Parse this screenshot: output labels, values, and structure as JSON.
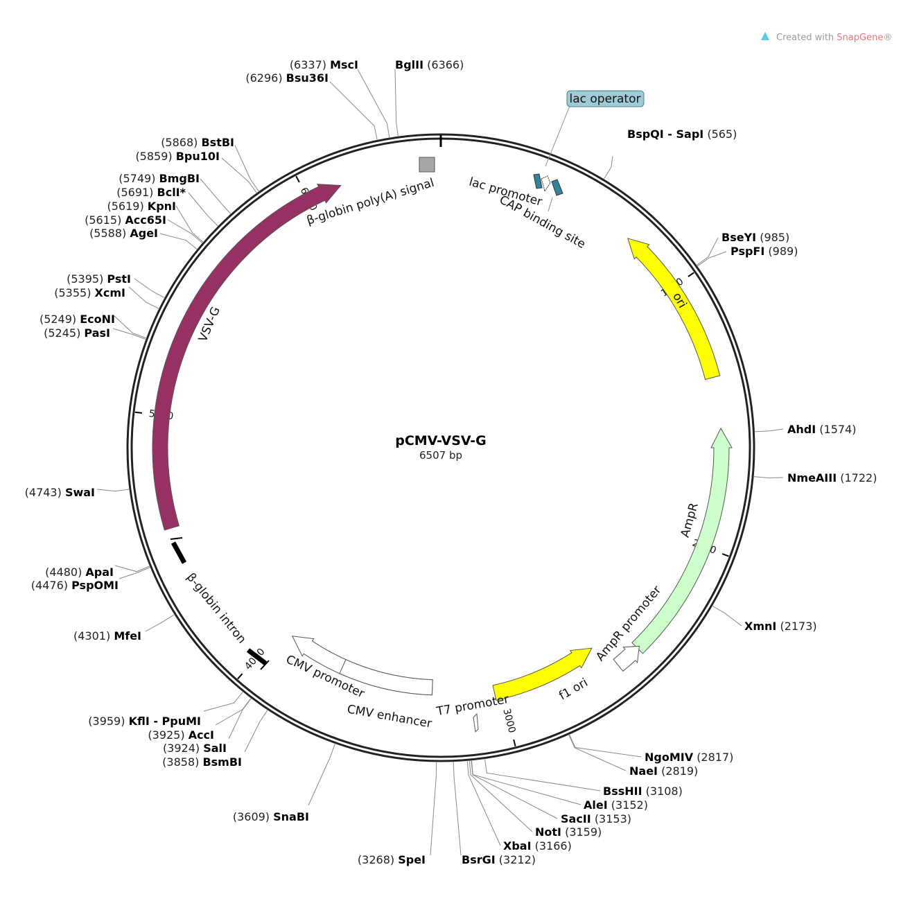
{
  "credit": {
    "prefix": "Created with ",
    "brand": "SnapGene",
    "suffix": "®"
  },
  "plasmid": {
    "name": "pCMV-VSV-G",
    "size": "6507 bp",
    "length": 6507
  },
  "ticks": [
    {
      "pos": 1000,
      "label": "1000"
    },
    {
      "pos": 2000,
      "label": "2000"
    },
    {
      "pos": 3000,
      "label": "3000"
    },
    {
      "pos": 4000,
      "label": "4000"
    },
    {
      "pos": 5000,
      "label": "5000"
    },
    {
      "pos": 6000,
      "label": "6000"
    }
  ],
  "sites": [
    {
      "name": "BspQI - SapI",
      "pos": "(565)"
    },
    {
      "name": "BseYI",
      "pos": "(985)"
    },
    {
      "name": "PspFI",
      "pos": "(989)"
    },
    {
      "name": "AhdI",
      "pos": "(1574)"
    },
    {
      "name": "NmeAIII",
      "pos": "(1722)"
    },
    {
      "name": "XmnI",
      "pos": "(2173)"
    },
    {
      "name": "NgoMIV",
      "pos": "(2817)"
    },
    {
      "name": "NaeI",
      "pos": "(2819)"
    },
    {
      "name": "BssHII",
      "pos": "(3108)"
    },
    {
      "name": "AleI",
      "pos": "(3152)"
    },
    {
      "name": "SacII",
      "pos": "(3153)"
    },
    {
      "name": "NotI",
      "pos": "(3159)"
    },
    {
      "name": "XbaI",
      "pos": "(3166)"
    },
    {
      "name": "BsrGI",
      "pos": "(3212)"
    },
    {
      "name": "SpeI",
      "pos": "(3268)"
    },
    {
      "name": "SnaBI",
      "pos": "(3609)"
    },
    {
      "name": "BsmBI",
      "pos": "(3858)"
    },
    {
      "name": "SalI",
      "pos": "(3924)"
    },
    {
      "name": "AccI",
      "pos": "(3925)"
    },
    {
      "name": "KflI - PpuMI",
      "pos": "(3959)"
    },
    {
      "name": "MfeI",
      "pos": "(4301)"
    },
    {
      "name": "PspOMI",
      "pos": "(4476)"
    },
    {
      "name": "ApaI",
      "pos": "(4480)"
    },
    {
      "name": "SwaI",
      "pos": "(4743)"
    },
    {
      "name": "PasI",
      "pos": "(5245)"
    },
    {
      "name": "EcoNI",
      "pos": "(5249)"
    },
    {
      "name": "XcmI",
      "pos": "(5355)"
    },
    {
      "name": "PstI",
      "pos": "(5395)"
    },
    {
      "name": "AgeI",
      "pos": "(5588)"
    },
    {
      "name": "Acc65I",
      "pos": "(5615)"
    },
    {
      "name": "KpnI",
      "pos": "(5619)"
    },
    {
      "name": "BclI*",
      "pos": "(5691)"
    },
    {
      "name": "BmgBI",
      "pos": "(5749)"
    },
    {
      "name": "Bpu10I",
      "pos": "(5859)"
    },
    {
      "name": "BstBI",
      "pos": "(5868)"
    },
    {
      "name": "Bsu36I",
      "pos": "(6296)"
    },
    {
      "name": "MscI",
      "pos": "(6337)"
    },
    {
      "name": "BglII",
      "pos": "(6366)"
    }
  ],
  "features": [
    {
      "key": "vsvg",
      "label": "VSV-G",
      "color": "#973163"
    },
    {
      "key": "ori",
      "label": "ori",
      "color": "#ffff00"
    },
    {
      "key": "ampr",
      "label": "AmpR",
      "color": "#ccffcc"
    },
    {
      "key": "ampr_promoter",
      "label": "AmpR promoter",
      "color": "#ffffff"
    },
    {
      "key": "f1ori",
      "label": "f1 ori",
      "color": "#ffff00"
    },
    {
      "key": "t7",
      "label": "T7 promoter",
      "color": "#ffffff"
    },
    {
      "key": "cmv_promoter",
      "label": "CMV promoter",
      "color": "#ffffff"
    },
    {
      "key": "cmv_enhancer",
      "label": "CMV enhancer",
      "color": "#ffffff"
    },
    {
      "key": "bglobin_intron",
      "label": "β-globin intron",
      "color": "#000000"
    },
    {
      "key": "bglobin_polya",
      "label": "β-globin poly(A) signal",
      "color": "#a6a6a6"
    },
    {
      "key": "lac_promoter",
      "label": "lac promoter",
      "color": "#ffffff"
    },
    {
      "key": "cap_site",
      "label": "CAP binding site",
      "color": "#31849b"
    },
    {
      "key": "lac_operator",
      "label": "lac operator",
      "color": "#9fcbd6"
    }
  ]
}
